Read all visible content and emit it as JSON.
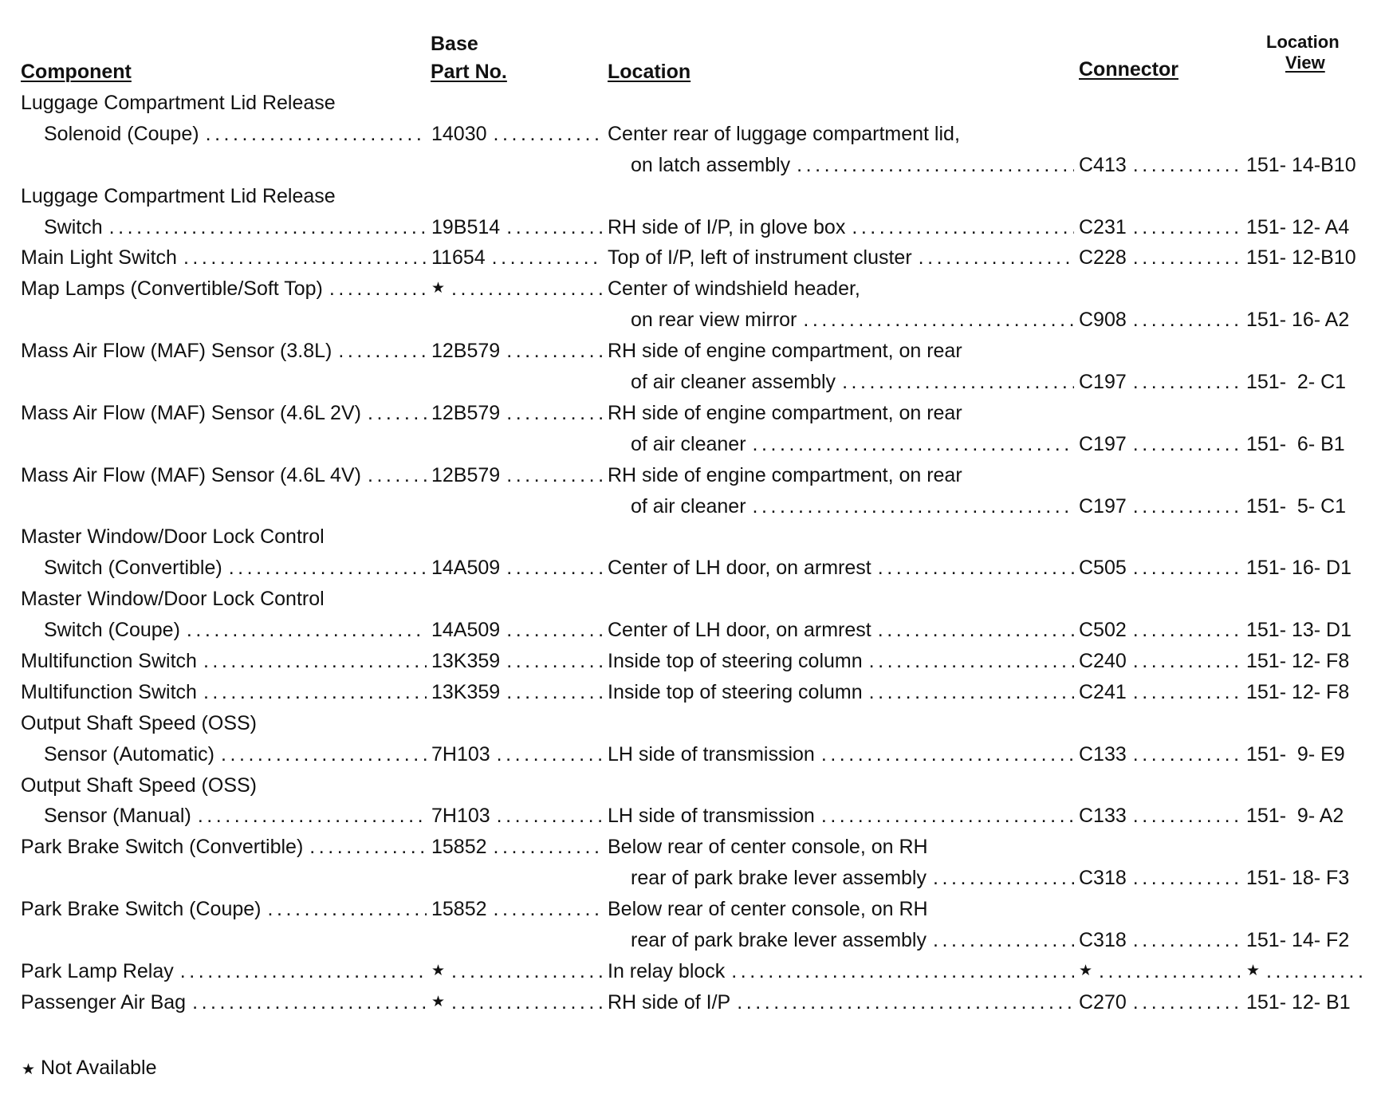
{
  "headers": {
    "component": "Component",
    "part_top": "Base",
    "part": "Part No.",
    "location": "Location",
    "connector": "Connector",
    "view_top": "Location",
    "view": "View"
  },
  "rows": [
    {
      "lines": [
        {
          "component": "Luggage Compartment Lid Release"
        },
        {
          "component": "Solenoid (Coupe)",
          "indent": true,
          "part": "14030",
          "location": "Center rear of luggage compartment lid,"
        },
        {
          "location": "on latch assembly",
          "loc_indent": true,
          "connector": "C413",
          "view": "151- 14-B10"
        }
      ]
    },
    {
      "lines": [
        {
          "component": "Luggage Compartment Lid Release"
        },
        {
          "component": "Switch",
          "indent": true,
          "part": "19B514",
          "location": "RH side of I/P, in glove box",
          "connector": "C231",
          "view": "151- 12- A4"
        }
      ]
    },
    {
      "lines": [
        {
          "component": "Main Light Switch",
          "part": "11654",
          "location": "Top of I/P, left of instrument cluster",
          "connector": "C228",
          "view": "151- 12-B10"
        }
      ]
    },
    {
      "lines": [
        {
          "component": "Map Lamps (Convertible/Soft Top)",
          "part": "★",
          "location": "Center of windshield header,"
        },
        {
          "location": "on rear view mirror",
          "loc_indent": true,
          "connector": "C908",
          "view": "151- 16- A2"
        }
      ]
    },
    {
      "lines": [
        {
          "component": "Mass Air Flow (MAF) Sensor (3.8L)",
          "part": "12B579",
          "location": "RH side of engine compartment, on rear"
        },
        {
          "location": "of air cleaner assembly",
          "loc_indent": true,
          "connector": "C197",
          "view": "151-  2- C1"
        }
      ]
    },
    {
      "lines": [
        {
          "component": "Mass Air Flow (MAF) Sensor (4.6L 2V)",
          "part": "12B579",
          "location": "RH side of engine compartment, on rear"
        },
        {
          "location": "of air cleaner",
          "loc_indent": true,
          "connector": "C197",
          "view": "151-  6- B1"
        }
      ]
    },
    {
      "lines": [
        {
          "component": "Mass Air Flow (MAF) Sensor (4.6L 4V)",
          "part": "12B579",
          "location": "RH side of engine compartment, on rear"
        },
        {
          "location": "of air cleaner",
          "loc_indent": true,
          "connector": "C197",
          "view": "151-  5- C1"
        }
      ]
    },
    {
      "lines": [
        {
          "component": "Master Window/Door Lock Control"
        },
        {
          "component": "Switch (Convertible)",
          "indent": true,
          "part": "14A509",
          "location": "Center of LH door, on armrest",
          "connector": "C505",
          "view": "151- 16- D1"
        }
      ]
    },
    {
      "lines": [
        {
          "component": "Master Window/Door Lock Control"
        },
        {
          "component": "Switch (Coupe)",
          "indent": true,
          "part": "14A509",
          "location": "Center of LH door, on armrest",
          "connector": "C502",
          "view": "151- 13- D1"
        }
      ]
    },
    {
      "lines": [
        {
          "component": "Multifunction Switch",
          "part": "13K359",
          "location": "Inside top of steering column",
          "connector": "C240",
          "view": "151- 12- F8"
        }
      ]
    },
    {
      "lines": [
        {
          "component": "Multifunction Switch",
          "part": "13K359",
          "location": "Inside top of steering column",
          "connector": "C241",
          "view": "151- 12- F8"
        }
      ]
    },
    {
      "lines": [
        {
          "component": "Output Shaft Speed (OSS)"
        },
        {
          "component": "Sensor (Automatic)",
          "indent": true,
          "part": "7H103",
          "location": "LH side of transmission",
          "connector": "C133",
          "view": "151-  9- E9"
        }
      ]
    },
    {
      "lines": [
        {
          "component": "Output Shaft Speed (OSS)"
        },
        {
          "component": "Sensor (Manual)",
          "indent": true,
          "part": "7H103",
          "location": "LH side of transmission",
          "connector": "C133",
          "view": "151-  9- A2"
        }
      ]
    },
    {
      "lines": [
        {
          "component": "Park Brake Switch (Convertible)",
          "part": "15852",
          "location": "Below rear of center console, on RH"
        },
        {
          "location": "rear of park brake lever assembly",
          "loc_indent": true,
          "connector": "C318",
          "view": "151- 18- F3"
        }
      ]
    },
    {
      "lines": [
        {
          "component": "Park Brake Switch (Coupe)",
          "part": "15852",
          "location": "Below rear of center console, on RH"
        },
        {
          "location": "rear of park brake lever assembly",
          "loc_indent": true,
          "connector": "C318",
          "view": "151- 14- F2"
        }
      ]
    },
    {
      "lines": [
        {
          "component": "Park Lamp Relay",
          "part": "★",
          "location": "In relay block",
          "connector": "★",
          "view": "★",
          "view_lead": true
        }
      ]
    },
    {
      "lines": [
        {
          "component": "Passenger Air Bag",
          "part": "★",
          "location": "RH side of I/P",
          "connector": "C270",
          "view": "151- 12- B1"
        }
      ]
    }
  ],
  "footnote": {
    "symbol": "★",
    "text": "Not Available"
  }
}
